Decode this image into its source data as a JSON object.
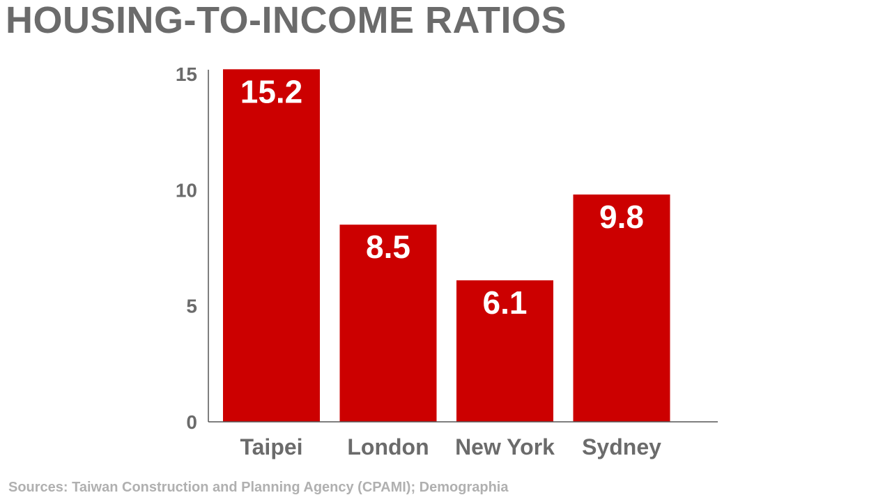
{
  "chart_data": {
    "type": "bar",
    "title": "HOUSING-TO-INCOME RATIOS",
    "categories": [
      "Taipei",
      "London",
      "New York",
      "Sydney"
    ],
    "values": [
      15.2,
      8.5,
      6.1,
      9.8
    ],
    "value_labels": [
      "15.2",
      "8.5",
      "6.1",
      "9.8"
    ],
    "yticks": [
      "0",
      "5",
      "10",
      "15"
    ],
    "ylim": [
      0,
      15
    ],
    "xlabel": "",
    "ylabel": "",
    "grid": false,
    "legend": "none",
    "source": "Sources: Taiwan Construction and Planning Agency (CPAMI); Demographia"
  },
  "colors": {
    "bar": "#cc0000",
    "axis": "#555555",
    "title": "#6b6b6b",
    "source": "#b0b0b0"
  }
}
